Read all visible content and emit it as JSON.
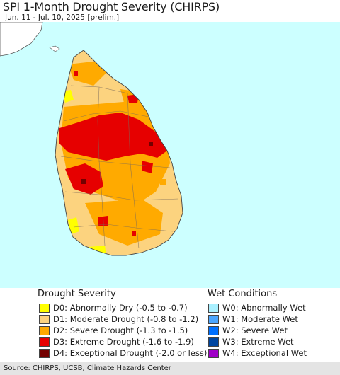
{
  "header": {
    "title": "SPI 1-Month Drought Severity (CHIRPS)",
    "subtitle": "Jun. 11 - Jul. 10, 2025 [prelim.]"
  },
  "colors": {
    "water": "#ccffff",
    "land_outside": "#ffffff",
    "D0": "#ffff00",
    "D1": "#fcd37f",
    "D2": "#ffaa00",
    "D3": "#e60000",
    "D4": "#730000",
    "W0": "#aaf0ff",
    "W1": "#4ca6ff",
    "W2": "#0070ff",
    "W3": "#0046a0",
    "W4": "#a000c8"
  },
  "legend": {
    "drought_heading": "Drought Severity",
    "wet_heading": "Wet Conditions",
    "drought_items": [
      {
        "code": "D0",
        "label": "D0: Abnormally Dry (-0.5 to -0.7)"
      },
      {
        "code": "D1",
        "label": "D1: Moderate Drought (-0.8 to -1.2)"
      },
      {
        "code": "D2",
        "label": "D2: Severe Drought (-1.3 to -1.5)"
      },
      {
        "code": "D3",
        "label": "D3: Extreme Drought (-1.6 to -1.9)"
      },
      {
        "code": "D4",
        "label": "D4: Exceptional Drought (-2.0 or less)"
      }
    ],
    "wet_items": [
      {
        "code": "W0",
        "label": "W0: Abnormally Wet"
      },
      {
        "code": "W1",
        "label": "W1: Moderate Wet"
      },
      {
        "code": "W2",
        "label": "W2: Severe Wet"
      },
      {
        "code": "W3",
        "label": "W3: Extreme Wet"
      },
      {
        "code": "W4",
        "label": "W4: Exceptional Wet"
      }
    ]
  },
  "footer": {
    "source": "Source: CHIRPS, UCSB, Climate Hazards Center"
  }
}
